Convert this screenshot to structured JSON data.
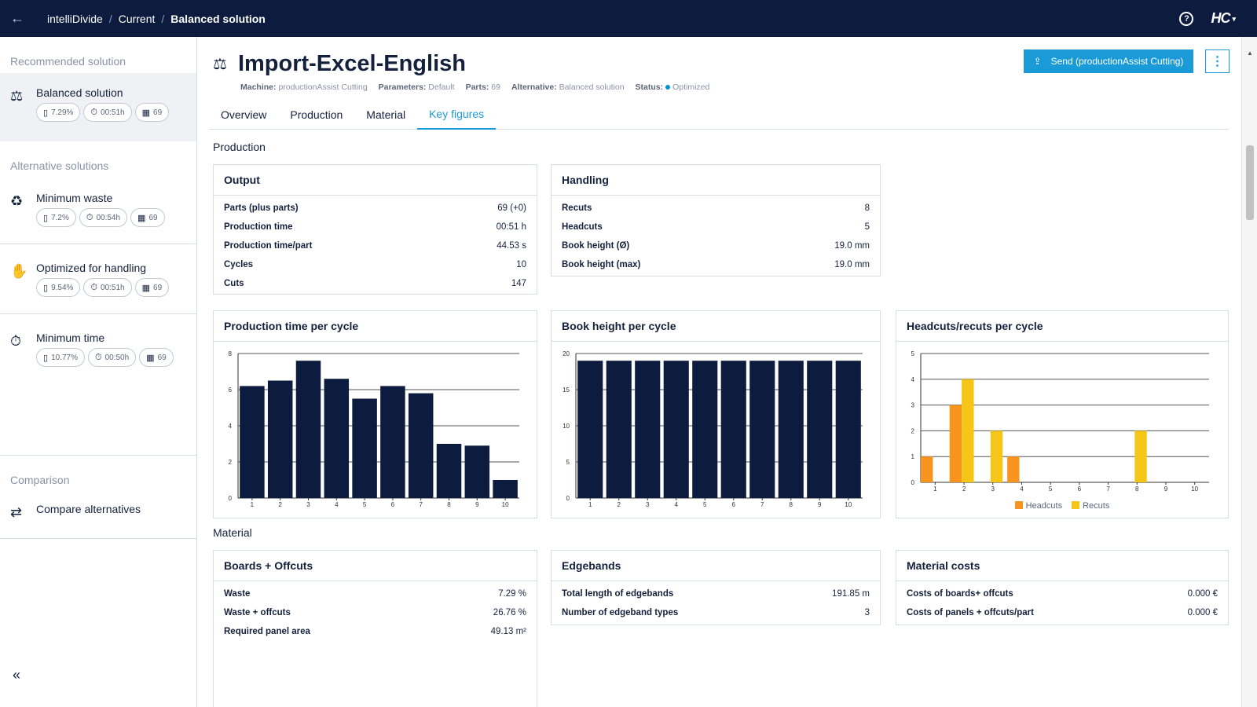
{
  "topbar": {
    "crumbs": [
      "intelliDivide",
      "Current",
      "Balanced solution"
    ],
    "help_icon": "?",
    "logo": "HC",
    "logo_caret": "▾"
  },
  "sidebar": {
    "recommended_heading": "Recommended solution",
    "alternative_heading": "Alternative solutions",
    "comparison_heading": "Comparison",
    "recommended": {
      "title": "Balanced solution",
      "icon": "balance-scale-icon",
      "waste": "7.29%",
      "time": "00:51h",
      "parts": "69"
    },
    "alternatives": [
      {
        "title": "Minimum waste",
        "icon": "waste-icon",
        "waste": "7.2%",
        "time": "00:54h",
        "parts": "69"
      },
      {
        "title": "Optimized for handling",
        "icon": "hand-icon",
        "waste": "9.54%",
        "time": "00:51h",
        "parts": "69"
      },
      {
        "title": "Minimum time",
        "icon": "stopwatch-icon",
        "waste": "10.77%",
        "time": "00:50h",
        "parts": "69"
      }
    ],
    "compare_label": "Compare alternatives",
    "collapse": "«"
  },
  "header": {
    "title": "Import-Excel-English",
    "meta": {
      "machine_label": "Machine:",
      "machine": "productionAssist Cutting",
      "parameters_label": "Parameters:",
      "parameters": "Default",
      "parts_label": "Parts:",
      "parts": "69",
      "alternative_label": "Alternative:",
      "alternative": "Balanced solution",
      "status_label": "Status:",
      "status": "Optimized"
    },
    "send_button": "Send (productionAssist Cutting)",
    "more_button": "⋮"
  },
  "tabs": [
    "Overview",
    "Production",
    "Material",
    "Key figures"
  ],
  "active_tab": "Key figures",
  "sections": {
    "production": "Production",
    "material": "Material"
  },
  "output": {
    "title": "Output",
    "rows": [
      {
        "k": "Parts (plus parts)",
        "v": "69 (+0)"
      },
      {
        "k": "Production time",
        "v": "00:51 h"
      },
      {
        "k": "Production time/part",
        "v": "44.53 s"
      },
      {
        "k": "Cycles",
        "v": "10"
      },
      {
        "k": "Cuts",
        "v": "147"
      }
    ]
  },
  "handling": {
    "title": "Handling",
    "rows": [
      {
        "k": "Recuts",
        "v": "8"
      },
      {
        "k": "Headcuts",
        "v": "5"
      },
      {
        "k": "Book height (Ø)",
        "v": "19.0 mm"
      },
      {
        "k": "Book height (max)",
        "v": "19.0 mm"
      }
    ]
  },
  "boards": {
    "title": "Boards + Offcuts",
    "rows": [
      {
        "k": "Waste",
        "v": "7.29 %"
      },
      {
        "k": "Waste + offcuts",
        "v": "26.76 %"
      },
      {
        "k": "Required panel area",
        "v": "49.13 m²"
      }
    ]
  },
  "edgebands": {
    "title": "Edgebands",
    "rows": [
      {
        "k": "Total length of edgebands",
        "v": "191.85 m"
      },
      {
        "k": "Number of edgeband types",
        "v": "3"
      }
    ]
  },
  "material_costs": {
    "title": "Material costs",
    "rows": [
      {
        "k": "Costs of boards+ offcuts",
        "v": "0.000 €"
      },
      {
        "k": "Costs of panels + offcuts/part",
        "v": "0.000 €"
      }
    ]
  },
  "colors": {
    "navy": "#0d1b3e",
    "bar": "#0d1b3e",
    "accent": "#1a9ad6",
    "headcuts": "#f7941d",
    "recuts": "#f5c518"
  },
  "chart_data": [
    {
      "type": "bar",
      "title": "Production time per cycle",
      "categories": [
        "1",
        "2",
        "3",
        "4",
        "5",
        "6",
        "7",
        "8",
        "9",
        "10"
      ],
      "values": [
        6.2,
        6.5,
        7.6,
        6.6,
        5.5,
        6.2,
        5.8,
        3.0,
        2.9,
        1.0
      ],
      "ylim": [
        0,
        8
      ],
      "yticks": [
        0,
        2,
        4,
        6,
        8
      ],
      "grid": true
    },
    {
      "type": "bar",
      "title": "Book height per cycle",
      "categories": [
        "1",
        "2",
        "3",
        "4",
        "5",
        "6",
        "7",
        "8",
        "9",
        "10"
      ],
      "values": [
        19,
        19,
        19,
        19,
        19,
        19,
        19,
        19,
        19,
        19
      ],
      "ylim": [
        0,
        20
      ],
      "yticks": [
        0,
        5,
        10,
        15,
        20
      ],
      "grid": true
    },
    {
      "type": "bar",
      "title": "Headcuts/recuts per cycle",
      "categories": [
        "1",
        "2",
        "3",
        "4",
        "5",
        "6",
        "7",
        "8",
        "9",
        "10"
      ],
      "series": [
        {
          "name": "Headcuts",
          "values": [
            1,
            3,
            0,
            1,
            0,
            0,
            0,
            0,
            0,
            0
          ]
        },
        {
          "name": "Recuts",
          "values": [
            0,
            4,
            2,
            0,
            0,
            0,
            0,
            2,
            0,
            0
          ]
        }
      ],
      "ylim": [
        0,
        5
      ],
      "yticks": [
        0,
        1,
        2,
        3,
        4,
        5
      ],
      "grid": true,
      "legend": "bottom"
    }
  ]
}
